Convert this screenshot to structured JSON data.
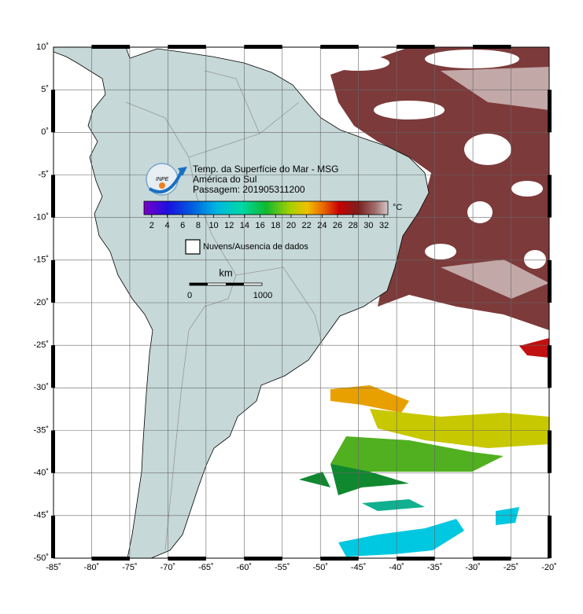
{
  "header": {
    "lines": [
      "Temp. da Superfície do Mar - MSG",
      "América do Sul",
      "Passagem: 201905311200"
    ],
    "logo": "INPE"
  },
  "colorbar": {
    "unit": "°C",
    "range": [
      1,
      32.5
    ],
    "ticks": [
      2,
      4,
      6,
      8,
      10,
      12,
      14,
      16,
      18,
      20,
      22,
      24,
      26,
      28,
      30,
      32
    ]
  },
  "legend": {
    "label": "Nuvens/Ausencia de dados"
  },
  "scale_bar": {
    "unit": "km",
    "labels": [
      "0",
      "1000"
    ]
  },
  "axes": {
    "xlim": [
      -85,
      -20
    ],
    "ylim": [
      -50,
      10
    ],
    "xticks": [
      {
        "value": -85,
        "label": "-85˚"
      },
      {
        "value": -80,
        "label": "-80˚"
      },
      {
        "value": -75,
        "label": "-75˚"
      },
      {
        "value": -70,
        "label": "-70˚"
      },
      {
        "value": -65,
        "label": "-65˚"
      },
      {
        "value": -60,
        "label": "-60˚"
      },
      {
        "value": -55,
        "label": "-55˚"
      },
      {
        "value": -50,
        "label": "-50˚"
      },
      {
        "value": -45,
        "label": "-45˚"
      },
      {
        "value": -40,
        "label": "-40˚"
      },
      {
        "value": -35,
        "label": "-35˚"
      },
      {
        "value": -30,
        "label": "-30˚"
      },
      {
        "value": -25,
        "label": "-25˚"
      },
      {
        "value": -20,
        "label": "-20˚"
      }
    ],
    "yticks": [
      {
        "value": 10,
        "label": "10˚"
      },
      {
        "value": 5,
        "label": "5˚"
      },
      {
        "value": 0,
        "label": "0˚"
      },
      {
        "value": -5,
        "label": "-5˚"
      },
      {
        "value": -10,
        "label": "-10˚"
      },
      {
        "value": -15,
        "label": "-15˚"
      },
      {
        "value": -20,
        "label": "-20˚"
      },
      {
        "value": -25,
        "label": "-25˚"
      },
      {
        "value": -30,
        "label": "-30˚"
      },
      {
        "value": -35,
        "label": "-35˚"
      },
      {
        "value": -40,
        "label": "-40˚"
      },
      {
        "value": -45,
        "label": "-45˚"
      },
      {
        "value": -50,
        "label": "-50˚"
      }
    ]
  }
}
